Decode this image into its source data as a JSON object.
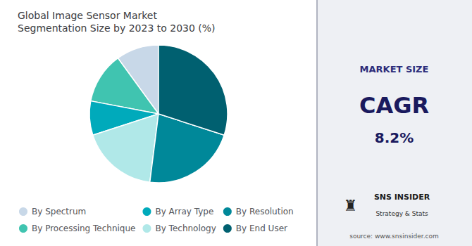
{
  "chart_data": {
    "type": "pie",
    "title": "Global Image Sensor Market\nSegmentation Size by 2023 to 2030 (%)",
    "categories": [
      "By Spectrum",
      "By Processing Technique",
      "By Array Type",
      "By Technology",
      "By Resolution",
      "By End User"
    ],
    "values": [
      10,
      12,
      8,
      18,
      22,
      30
    ],
    "colors": [
      "#c8d8e8",
      "#40c4b0",
      "#00aabb",
      "#b0e8e8",
      "#008899",
      "#006070"
    ],
    "legend": "bottom",
    "annotations": [
      "MARKET SIZE",
      "CAGR",
      "8.2%",
      "♜",
      "SNS INSIDER",
      "Strategy & Stats",
      "source: www.snsinsider.com"
    ]
  }
}
